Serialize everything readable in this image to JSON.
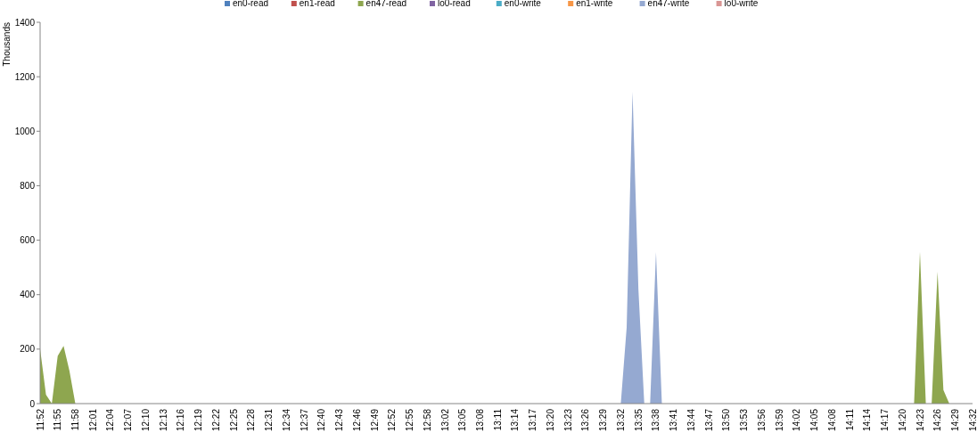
{
  "chart_data": {
    "type": "area",
    "ylabel": "Thousands",
    "ylim": [
      0,
      1400
    ],
    "yticks": [
      0,
      200,
      400,
      600,
      800,
      1000,
      1200,
      1400
    ],
    "grid": false,
    "legend": "top",
    "categories": [
      "11:52",
      null,
      null,
      "11:55",
      null,
      null,
      "11:58",
      null,
      null,
      "12:01",
      null,
      null,
      "12:04",
      null,
      null,
      "12:07",
      null,
      null,
      "12:10",
      null,
      null,
      "12:13",
      null,
      null,
      "12:16",
      null,
      null,
      "12:19",
      null,
      null,
      "12:22",
      null,
      null,
      "12:25",
      null,
      null,
      "12:28",
      null,
      null,
      "12:31",
      null,
      null,
      "12:34",
      null,
      null,
      "12:37",
      null,
      null,
      "12:40",
      null,
      null,
      "12:43",
      null,
      null,
      "12:46",
      null,
      null,
      "12:49",
      null,
      null,
      "12:52",
      null,
      null,
      "12:55",
      null,
      null,
      "12:58",
      null,
      null,
      "13:02",
      null,
      null,
      "13:05",
      null,
      null,
      "13:08",
      null,
      null,
      "13:11",
      null,
      null,
      "13:14",
      null,
      null,
      "13:17",
      null,
      null,
      "13:20",
      null,
      null,
      "13:23",
      null,
      null,
      "13:26",
      null,
      null,
      "13:29",
      null,
      null,
      "13:32",
      null,
      null,
      "13:35",
      null,
      null,
      "13:38",
      null,
      null,
      "13:41",
      null,
      null,
      "13:44",
      null,
      null,
      "13:47",
      null,
      null,
      "13:50",
      null,
      null,
      "13:53",
      null,
      null,
      "13:56",
      null,
      null,
      "13:59",
      null,
      null,
      "14:02",
      null,
      null,
      "14:05",
      null,
      null,
      "14:08",
      null,
      null,
      "14:11",
      null,
      null,
      "14:14",
      null,
      null,
      "14:17",
      null,
      null,
      "14:20",
      null,
      null,
      "14:23",
      null,
      null,
      "14:26",
      null,
      null,
      "14:29",
      null,
      null,
      "14:32"
    ],
    "series": [
      {
        "name": "en0-read",
        "color": "#4f81bd",
        "values": [
          null,
          null,
          null,
          null,
          null,
          null,
          null,
          null,
          null,
          null,
          null,
          null,
          null,
          null,
          null,
          null,
          null,
          null,
          null,
          null,
          null,
          null,
          null,
          null,
          null,
          null,
          null,
          null,
          null,
          null,
          null,
          null,
          null,
          null,
          null,
          null,
          null,
          null,
          null,
          null,
          null,
          null,
          null,
          null,
          null,
          null,
          null,
          null,
          null,
          null,
          null,
          null,
          null,
          null,
          null,
          null,
          null,
          null,
          null,
          null,
          null,
          null,
          null,
          null,
          null,
          null,
          null,
          null,
          null,
          null,
          null,
          null,
          null,
          null,
          null,
          null,
          null,
          null,
          null,
          null,
          null,
          null,
          null,
          null,
          null,
          null,
          null,
          null,
          null,
          null,
          null,
          null,
          null,
          null,
          null,
          null,
          null,
          null,
          null,
          null,
          null,
          null,
          null,
          null,
          null,
          null,
          null,
          null,
          null,
          null,
          null,
          null,
          null,
          null,
          null,
          null,
          null,
          null,
          null,
          null,
          null,
          null,
          null,
          null,
          null,
          null,
          null,
          null,
          null,
          null,
          null,
          null,
          null,
          null,
          null,
          null,
          null,
          null,
          null,
          null,
          null,
          null,
          null,
          null,
          null,
          null,
          null,
          null,
          null,
          null,
          null,
          null,
          null,
          null,
          null,
          null,
          null,
          null,
          null,
          null
        ]
      },
      {
        "name": "en1-read",
        "color": "#c0504d",
        "values": [
          null,
          null,
          null,
          null,
          null,
          null,
          null,
          null,
          null,
          null,
          null,
          null,
          null,
          null,
          null,
          null,
          null,
          null,
          null,
          null,
          null,
          null,
          null,
          null,
          null,
          null,
          null,
          null,
          null,
          null,
          null,
          null,
          null,
          null,
          null,
          null,
          null,
          null,
          null,
          null,
          null,
          null,
          null,
          null,
          null,
          null,
          null,
          null,
          null,
          null,
          null,
          null,
          null,
          null,
          null,
          null,
          null,
          null,
          null,
          null,
          null,
          null,
          null,
          null,
          null,
          null,
          null,
          null,
          null,
          null,
          null,
          null,
          null,
          null,
          null,
          null,
          null,
          null,
          null,
          null,
          null,
          null,
          null,
          null,
          null,
          null,
          null,
          null,
          null,
          null,
          null,
          null,
          null,
          null,
          null,
          null,
          null,
          null,
          null,
          null,
          null,
          null,
          null,
          null,
          null,
          null,
          null,
          null,
          null,
          null,
          null,
          null,
          null,
          null,
          null,
          null,
          null,
          null,
          null,
          null,
          null,
          null,
          null,
          null,
          null,
          null,
          null,
          null,
          null,
          null,
          null,
          null,
          null,
          null,
          null,
          null,
          null,
          null,
          null,
          null,
          null,
          null,
          null,
          null,
          null,
          null,
          null,
          null,
          null,
          null,
          null,
          null,
          null,
          null,
          null,
          null,
          null,
          null,
          null,
          null
        ]
      },
      {
        "name": "en47-read",
        "color": "#8ea64f",
        "values": [
          200,
          33,
          0,
          175,
          212,
          120,
          0,
          0,
          0,
          0,
          0,
          0,
          0,
          0,
          0,
          0,
          0,
          0,
          0,
          0,
          0,
          0,
          0,
          0,
          0,
          0,
          0,
          0,
          0,
          0,
          0,
          0,
          0,
          0,
          0,
          0,
          0,
          0,
          0,
          0,
          0,
          0,
          0,
          0,
          0,
          0,
          0,
          0,
          0,
          0,
          0,
          0,
          0,
          0,
          0,
          0,
          0,
          0,
          0,
          0,
          0,
          0,
          0,
          0,
          0,
          0,
          0,
          0,
          0,
          0,
          0,
          0,
          0,
          0,
          0,
          0,
          0,
          0,
          0,
          0,
          0,
          0,
          0,
          0,
          0,
          0,
          0,
          0,
          0,
          0,
          0,
          0,
          0,
          0,
          0,
          0,
          0,
          0,
          0,
          0,
          0,
          0,
          0,
          0,
          0,
          0,
          0,
          0,
          0,
          0,
          0,
          0,
          0,
          0,
          0,
          0,
          0,
          0,
          0,
          0,
          0,
          0,
          0,
          0,
          0,
          0,
          0,
          0,
          0,
          0,
          0,
          0,
          0,
          0,
          0,
          0,
          0,
          0,
          0,
          0,
          0,
          0,
          0,
          0,
          0,
          0,
          0,
          0,
          0,
          0,
          557,
          0,
          0,
          484,
          50,
          0,
          0,
          0,
          0,
          0
        ]
      },
      {
        "name": "lo0-read",
        "color": "#8064a2",
        "values": [
          null,
          null,
          null,
          null,
          null,
          null,
          null,
          null,
          null,
          null,
          null,
          null,
          null,
          null,
          null,
          null,
          null,
          null,
          null,
          null,
          null,
          null,
          null,
          null,
          null,
          null,
          null,
          null,
          null,
          null,
          null,
          null,
          null,
          null,
          null,
          null,
          null,
          null,
          null,
          null,
          null,
          null,
          null,
          null,
          null,
          null,
          null,
          null,
          null,
          null,
          null,
          null,
          null,
          null,
          null,
          null,
          null,
          null,
          null,
          null,
          null,
          null,
          null,
          null,
          null,
          null,
          null,
          null,
          null,
          null,
          null,
          null,
          null,
          null,
          null,
          null,
          null,
          null,
          null,
          null,
          null,
          null,
          null,
          null,
          null,
          null,
          null,
          null,
          null,
          null,
          null,
          null,
          null,
          null,
          null,
          null,
          null,
          null,
          null,
          null,
          null,
          null,
          null,
          null,
          null,
          null,
          null,
          null,
          null,
          null,
          null,
          null,
          null,
          null,
          null,
          null,
          null,
          null,
          null,
          null,
          null,
          null,
          null,
          null,
          null,
          null,
          null,
          null,
          null,
          null,
          null,
          null,
          null,
          null,
          null,
          null,
          null,
          null,
          null,
          null,
          null,
          null,
          null,
          null,
          null,
          null,
          null,
          null,
          null,
          null,
          null,
          null,
          null,
          null,
          null,
          null,
          null,
          null,
          null,
          null
        ]
      },
      {
        "name": "en0-write",
        "color": "#4bacc6",
        "values": [
          null,
          null,
          null,
          null,
          null,
          null,
          null,
          null,
          null,
          null,
          null,
          null,
          null,
          null,
          null,
          null,
          null,
          null,
          null,
          null,
          null,
          null,
          null,
          null,
          null,
          null,
          null,
          null,
          null,
          null,
          null,
          null,
          null,
          null,
          null,
          null,
          null,
          null,
          null,
          null,
          null,
          null,
          null,
          null,
          null,
          null,
          null,
          null,
          null,
          null,
          null,
          null,
          null,
          null,
          null,
          null,
          null,
          null,
          null,
          null,
          null,
          null,
          null,
          null,
          null,
          null,
          null,
          null,
          null,
          null,
          null,
          null,
          null,
          null,
          null,
          null,
          null,
          null,
          null,
          null,
          null,
          null,
          null,
          null,
          null,
          null,
          null,
          null,
          null,
          null,
          null,
          null,
          null,
          null,
          null,
          null,
          null,
          null,
          null,
          null,
          null,
          null,
          null,
          null,
          null,
          null,
          null,
          null,
          null,
          null,
          null,
          null,
          null,
          null,
          null,
          null,
          null,
          null,
          null,
          null,
          null,
          null,
          null,
          null,
          null,
          null,
          null,
          null,
          null,
          null,
          null,
          null,
          null,
          null,
          null,
          null,
          null,
          null,
          null,
          null,
          null,
          null,
          null,
          null,
          null,
          null,
          null,
          null,
          null,
          null,
          null,
          null,
          null,
          null,
          null,
          null,
          null,
          null,
          null,
          null
        ]
      },
      {
        "name": "en1-write",
        "color": "#f79646",
        "values": [
          null,
          null,
          null,
          null,
          null,
          null,
          null,
          null,
          null,
          null,
          null,
          null,
          null,
          null,
          null,
          null,
          null,
          null,
          null,
          null,
          null,
          null,
          null,
          null,
          null,
          null,
          null,
          null,
          null,
          null,
          null,
          null,
          null,
          null,
          null,
          null,
          null,
          null,
          null,
          null,
          null,
          null,
          null,
          null,
          null,
          null,
          null,
          null,
          null,
          null,
          null,
          null,
          null,
          null,
          null,
          null,
          null,
          null,
          null,
          null,
          null,
          null,
          null,
          null,
          null,
          null,
          null,
          null,
          null,
          null,
          null,
          null,
          null,
          null,
          null,
          null,
          null,
          null,
          null,
          null,
          null,
          null,
          null,
          null,
          null,
          null,
          null,
          null,
          null,
          null,
          null,
          null,
          null,
          null,
          null,
          null,
          null,
          null,
          null,
          null,
          null,
          null,
          null,
          null,
          null,
          null,
          null,
          null,
          null,
          null,
          null,
          null,
          null,
          null,
          null,
          null,
          null,
          null,
          null,
          null,
          null,
          null,
          null,
          null,
          null,
          null,
          null,
          null,
          null,
          null,
          null,
          null,
          null,
          null,
          null,
          null,
          null,
          null,
          null,
          null,
          null,
          null,
          null,
          null,
          null,
          null,
          null,
          null,
          null,
          null,
          null,
          null,
          null,
          null,
          null,
          null,
          null,
          null,
          null,
          null
        ]
      },
      {
        "name": "en47-write",
        "color": "#95a9d1",
        "values": [
          0,
          0,
          0,
          0,
          0,
          0,
          0,
          0,
          0,
          0,
          0,
          0,
          0,
          0,
          0,
          0,
          0,
          0,
          0,
          0,
          0,
          0,
          0,
          0,
          0,
          0,
          0,
          0,
          0,
          0,
          0,
          0,
          0,
          0,
          0,
          0,
          0,
          0,
          0,
          0,
          0,
          0,
          0,
          0,
          0,
          0,
          0,
          0,
          0,
          0,
          0,
          0,
          0,
          0,
          0,
          0,
          0,
          0,
          0,
          0,
          0,
          0,
          0,
          0,
          0,
          0,
          0,
          0,
          0,
          0,
          0,
          0,
          0,
          0,
          0,
          0,
          0,
          0,
          0,
          0,
          0,
          0,
          0,
          0,
          0,
          0,
          0,
          0,
          0,
          0,
          0,
          0,
          0,
          0,
          0,
          0,
          0,
          0,
          0,
          0,
          280,
          1145,
          420,
          0,
          0,
          556,
          0,
          0,
          0,
          0,
          0,
          0,
          0,
          0,
          0,
          0,
          0,
          0,
          0,
          0,
          0,
          0,
          0,
          0,
          0,
          0,
          0,
          0,
          0,
          0,
          0,
          0,
          0,
          0,
          0,
          0,
          0,
          0,
          0,
          0,
          0,
          0,
          0,
          0,
          0,
          0,
          0,
          0,
          0,
          0,
          0,
          0,
          0,
          0,
          0,
          0,
          0,
          0,
          0,
          0
        ]
      },
      {
        "name": "lo0-write",
        "color": "#d99694",
        "values": [
          null,
          null,
          null,
          null,
          null,
          null,
          null,
          null,
          null,
          null,
          null,
          null,
          null,
          null,
          null,
          null,
          null,
          null,
          null,
          null,
          null,
          null,
          null,
          null,
          null,
          null,
          null,
          null,
          null,
          null,
          null,
          null,
          null,
          null,
          null,
          null,
          null,
          null,
          null,
          null,
          null,
          null,
          null,
          null,
          null,
          null,
          null,
          null,
          null,
          null,
          null,
          null,
          null,
          null,
          null,
          null,
          null,
          null,
          null,
          null,
          null,
          null,
          null,
          null,
          null,
          null,
          null,
          null,
          null,
          null,
          null,
          null,
          null,
          null,
          null,
          null,
          null,
          null,
          null,
          null,
          null,
          null,
          null,
          null,
          null,
          null,
          null,
          null,
          null,
          null,
          null,
          null,
          null,
          null,
          null,
          null,
          null,
          null,
          null,
          null,
          null,
          null,
          null,
          null,
          null,
          null,
          null,
          null,
          null,
          null,
          null,
          null,
          null,
          null,
          null,
          null,
          null,
          null,
          null,
          null,
          null,
          null,
          null,
          null,
          null,
          null,
          null,
          null,
          null,
          null,
          null,
          null,
          null,
          null,
          null,
          null,
          null,
          null,
          null,
          null,
          null,
          null,
          null,
          null,
          null,
          null,
          null,
          null,
          null,
          null,
          null,
          null,
          null,
          null,
          null,
          null,
          null,
          null,
          null,
          null
        ]
      }
    ]
  }
}
